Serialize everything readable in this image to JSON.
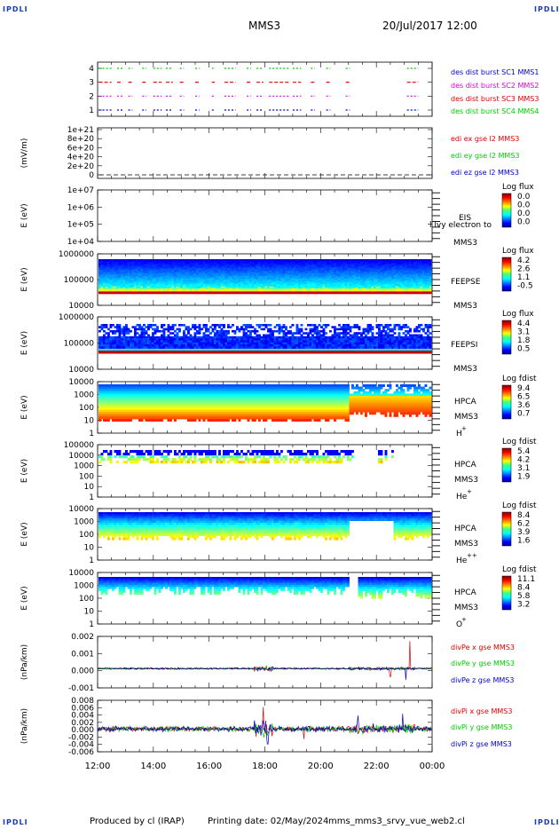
{
  "corner_text": "IPDLI",
  "header": {
    "spacecraft": "MMS3",
    "datetime": "20/Jul/2017 12:00"
  },
  "footer": {
    "produced_by": "Produced by cl (IRAP)",
    "printing_date": "Printing date: 02/May/2024",
    "script": "mms_mms3_srvy_vue_web2.cl"
  },
  "colors": {
    "mms1": "#0000cc",
    "mms2": "#dd00dd",
    "mms3": "#dd0000",
    "mms4": "#00cc00",
    "x_component": "#dd0000",
    "y_component": "#00cc00",
    "z_component": "#0000cc"
  },
  "chart_data": [
    {
      "panel": "burst",
      "type": "scatter",
      "yticks": [
        "1",
        "2",
        "3",
        "4"
      ],
      "legend": [
        "des dist burst SC1 MMS1",
        "des dist burst SC2 MMS2",
        "des dist burst SC3 MMS3",
        "des dist burst SC4 MMS4"
      ]
    },
    {
      "panel": "edi",
      "type": "line",
      "ylabel": "(mV/m)",
      "yticks": [
        "1e+21",
        "8e+20",
        "6e+20",
        "4e+20",
        "2e+20",
        "0"
      ],
      "ylim": [
        0,
        1e+21
      ],
      "legend": [
        "edi ex gse l2 MMS3",
        "edi ey gse l2 MMS3",
        "edi ez gse l2 MMS3"
      ]
    },
    {
      "panel": "eis",
      "type": "heatmap",
      "ylabel": "E (eV)",
      "yticks": [
        "1e+07",
        "1e+06",
        "1e+05",
        "1e+04"
      ],
      "instrument": [
        "EIS",
        "l lvy electron to",
        "MMS3"
      ],
      "colorbar_title": "Log flux",
      "colorbar_ticks": [
        "0.0",
        "0.0",
        "0.0",
        "0.0"
      ]
    },
    {
      "panel": "feepse",
      "type": "heatmap",
      "ylabel": "E (eV)",
      "yticks": [
        "1000000",
        "100000",
        "10000"
      ],
      "instrument": [
        "FEEPSE",
        "MMS3"
      ],
      "colorbar_title": "Log flux",
      "colorbar_ticks": [
        "4.2",
        "2.6",
        "1.1",
        "-0.5"
      ]
    },
    {
      "panel": "feepsi",
      "type": "heatmap",
      "ylabel": "E (eV)",
      "yticks": [
        "1000000",
        "100000",
        "10000"
      ],
      "instrument": [
        "FEEPSI",
        "MMS3"
      ],
      "colorbar_title": "Log flux",
      "colorbar_ticks": [
        "4.4",
        "3.1",
        "1.8",
        "0.5"
      ]
    },
    {
      "panel": "hpca_h",
      "type": "heatmap",
      "ylabel": "E (eV)",
      "yticks": [
        "10000",
        "1000",
        "100",
        "10",
        "1"
      ],
      "instrument": [
        "HPCA",
        "MMS3",
        "H",
        "+"
      ],
      "colorbar_title": "Log fdist",
      "colorbar_ticks": [
        "9.4",
        "6.5",
        "3.6",
        "0.7"
      ]
    },
    {
      "panel": "hpca_he1",
      "type": "heatmap",
      "ylabel": "E (eV)",
      "yticks": [
        "100000",
        "10000",
        "1000",
        "100",
        "10",
        "1"
      ],
      "instrument": [
        "HPCA",
        "MMS3",
        "He",
        "+"
      ],
      "colorbar_title": "Log fdist",
      "colorbar_ticks": [
        "5.4",
        "4.2",
        "3.1",
        "1.9"
      ]
    },
    {
      "panel": "hpca_he2",
      "type": "heatmap",
      "ylabel": "E (eV)",
      "yticks": [
        "10000",
        "1000",
        "100",
        "10",
        "1"
      ],
      "instrument": [
        "HPCA",
        "MMS3",
        "He",
        "++"
      ],
      "colorbar_title": "Log fdist",
      "colorbar_ticks": [
        "8.4",
        "6.2",
        "3.9",
        "1.6"
      ]
    },
    {
      "panel": "hpca_o",
      "type": "heatmap",
      "ylabel": "E (eV)",
      "yticks": [
        "10000",
        "1000",
        "100",
        "10",
        "1"
      ],
      "instrument": [
        "HPCA",
        "MMS3",
        "O",
        "+"
      ],
      "colorbar_title": "Log fdist",
      "colorbar_ticks": [
        "11.1",
        "8.4",
        "5.8",
        "3.2"
      ]
    },
    {
      "panel": "divpe",
      "type": "line",
      "ylabel": "(nPa/km)",
      "yticks": [
        "0.002",
        "0.001",
        "0.000",
        "-0.001"
      ],
      "ylim": [
        -0.0012,
        0.002
      ],
      "legend": [
        "divPe x gse MMS3",
        "divPe y gse MMS3",
        "divPe z gse MMS3"
      ]
    },
    {
      "panel": "divpi",
      "type": "line",
      "ylabel": "(nPa/km)",
      "yticks": [
        "0.008",
        "0.006",
        "0.004",
        "0.002",
        "0.000",
        "-0.002",
        "-0.004",
        "-0.006"
      ],
      "ylim": [
        -0.0068,
        0.0085
      ],
      "legend": [
        "divPi x gse MMS3",
        "divPi y gse MMS3",
        "divPi z gse MMS3"
      ]
    }
  ],
  "xaxis": {
    "ticks": [
      "12:00",
      "14:00",
      "16:00",
      "18:00",
      "20:00",
      "22:00",
      "00:00"
    ],
    "xlim_hours": [
      12,
      24
    ]
  }
}
